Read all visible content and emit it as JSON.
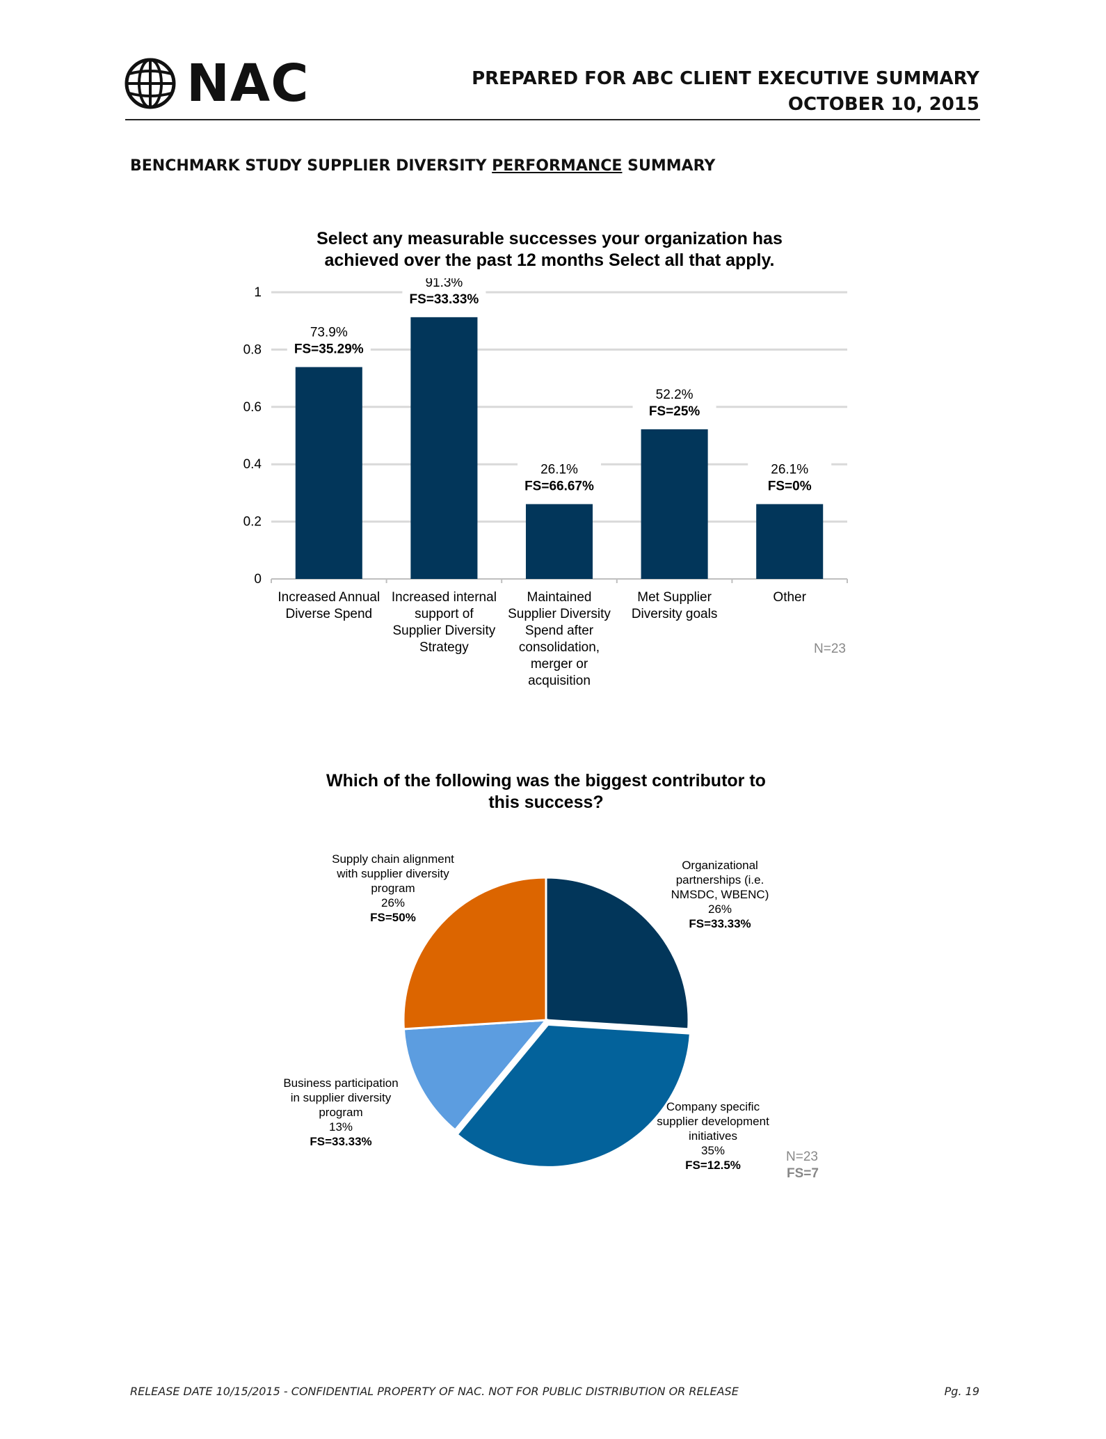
{
  "header": {
    "logo_text": "NAC",
    "prepared_line": "PREPARED FOR ABC CLIENT EXECUTIVE SUMMARY",
    "date_line": "OCTOBER 10, 2015"
  },
  "section": {
    "title_before": "BENCHMARK STUDY SUPPLIER DIVERSITY ",
    "title_underlined": "PERFORMANCE",
    "title_after": " SUMMARY"
  },
  "colors": {
    "navy": "#02365A",
    "blue": "#03629B",
    "light_blue": "#5C9DE0",
    "orange": "#DC6500",
    "grid": "#D9D9D9",
    "note_gray": "#888888"
  },
  "chart_data": [
    {
      "type": "bar",
      "title_line1": "Select any measurable successes your organization has",
      "title_line2": "achieved over the past 12 months   Select all that apply.",
      "categories": [
        [
          "Increased Annual",
          "Diverse Spend"
        ],
        [
          "Increased internal",
          "support of",
          "Supplier Diversity",
          "Strategy"
        ],
        [
          "Maintained",
          "Supplier Diversity",
          "Spend after",
          "consolidation,",
          "merger or",
          "acquisition"
        ],
        [
          "Met Supplier",
          "Diversity goals"
        ],
        [
          "Other"
        ]
      ],
      "values": [
        0.739,
        0.913,
        0.261,
        0.522,
        0.261
      ],
      "value_labels": [
        "73.9%",
        "91.3%",
        "26.1%",
        "52.2%",
        "26.1%"
      ],
      "fs_labels": [
        "FS=35.29%",
        "FS=33.33%",
        "FS=66.67%",
        "FS=25%",
        "FS=0%"
      ],
      "yticks": [
        "0",
        "0.2",
        "0.4",
        "0.6",
        "0.8",
        "1"
      ],
      "ylim": [
        0,
        1
      ],
      "grid": true,
      "note": "N=23"
    },
    {
      "type": "pie",
      "title_line1": "Which of the following was the biggest contributor to",
      "title_line2": "this success?",
      "slices": [
        {
          "label": [
            "Organizational",
            "partnerships (i.e.",
            "NMSDC, WBENC)"
          ],
          "value": 26,
          "value_label": "26%",
          "fs": "FS=33.33%",
          "color": "#02365A"
        },
        {
          "label": [
            "Company specific",
            "supplier development",
            "initiatives"
          ],
          "value": 35,
          "value_label": "35%",
          "fs": "FS=12.5%",
          "color": "#03629B"
        },
        {
          "label": [
            "Business participation",
            "in supplier diversity",
            "program"
          ],
          "value": 13,
          "value_label": "13%",
          "fs": "FS=33.33%",
          "color": "#5C9DE0"
        },
        {
          "label": [
            "Supply chain alignment",
            "with supplier diversity",
            "program"
          ],
          "value": 26,
          "value_label": "26%",
          "fs": "FS=50%",
          "color": "#DC6500"
        }
      ],
      "note_n": "N=23",
      "note_fs": "FS=7"
    }
  ],
  "footer": {
    "release": "RELEASE DATE 10/15/2015 - CONFIDENTIAL PROPERTY OF NAC. NOT FOR PUBLIC DISTRIBUTION OR RELEASE",
    "page": "Pg. 19"
  }
}
